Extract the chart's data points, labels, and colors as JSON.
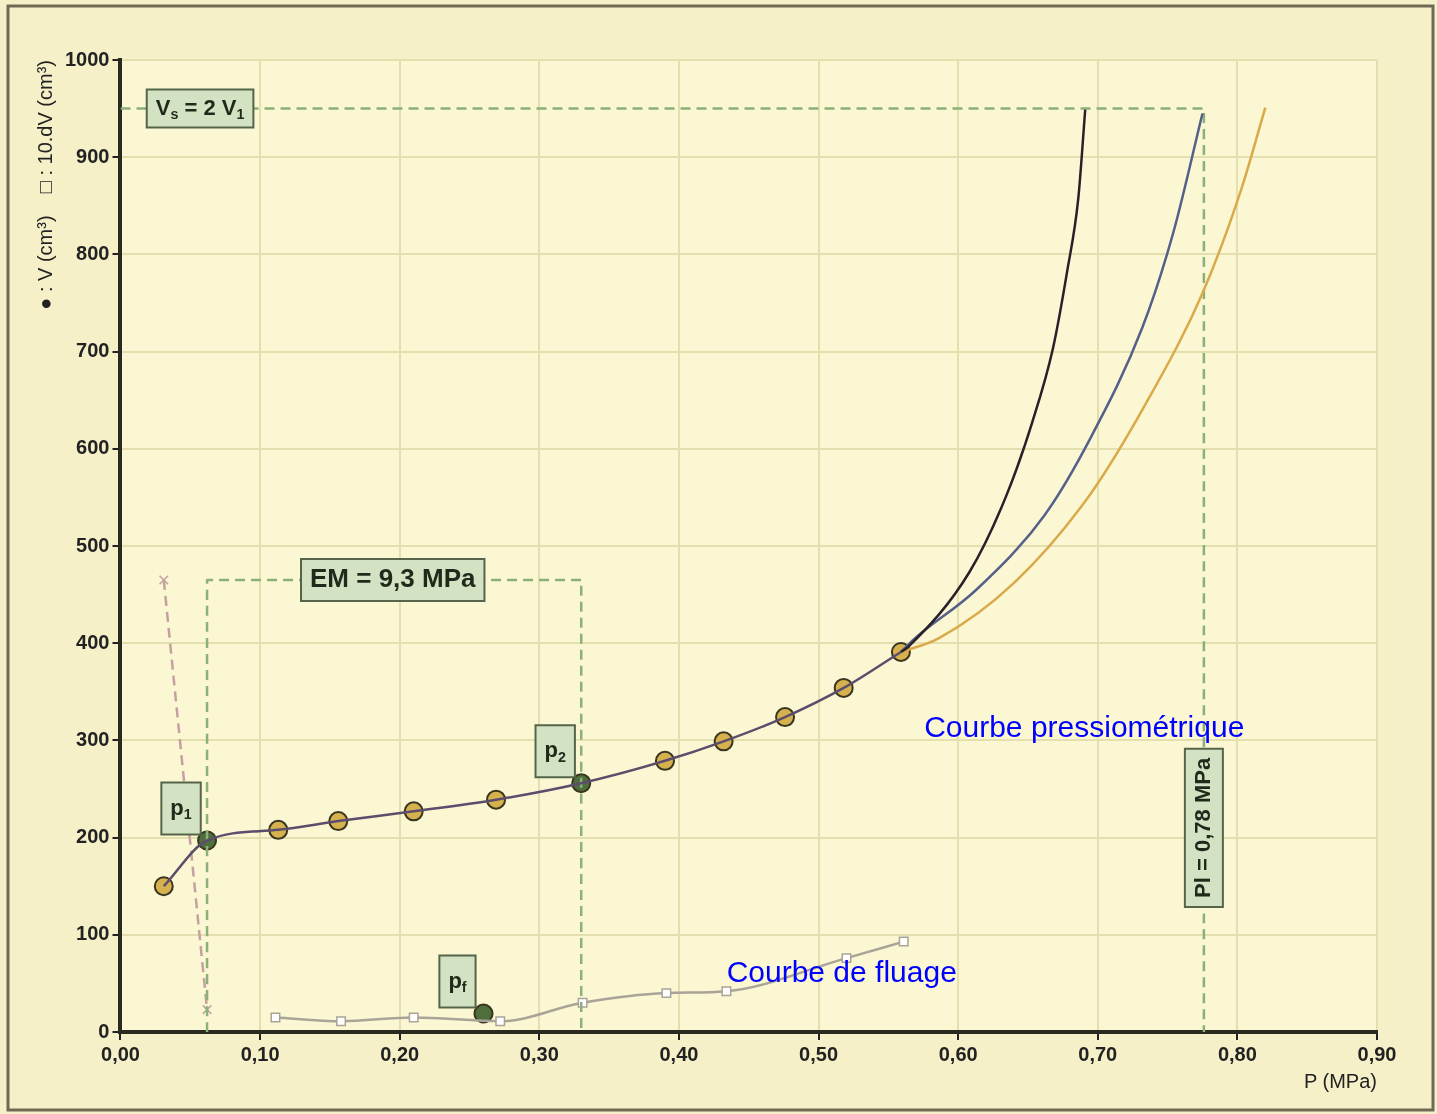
{
  "chart_data": {
    "type": "line",
    "xlabel": "P (MPa)",
    "ylabel": "● : V (cm³)    □ : 10.dV (cm³)",
    "xlim": [
      0,
      0.9
    ],
    "xticks": [
      {
        "value": 0,
        "label": "0,00"
      },
      {
        "value": 0.1,
        "label": "0,10"
      },
      {
        "value": 0.2,
        "label": "0,20"
      },
      {
        "value": 0.3,
        "label": "0,30"
      },
      {
        "value": 0.4,
        "label": "0,40"
      },
      {
        "value": 0.5,
        "label": "0,50"
      },
      {
        "value": 0.6,
        "label": "0,60"
      },
      {
        "value": 0.7,
        "label": "0,70"
      },
      {
        "value": 0.8,
        "label": "0,80"
      },
      {
        "value": 0.9,
        "label": "0,90"
      }
    ],
    "ylim": [
      0,
      1000
    ],
    "yticks": [
      0,
      100,
      200,
      300,
      400,
      500,
      600,
      700,
      800,
      900,
      1000
    ],
    "grid": true,
    "legend": false,
    "series": [
      {
        "type": "line",
        "color": "#5b4d6b",
        "marker": "none",
        "x": [
          0.031,
          0.062,
          0.113,
          0.156,
          0.21,
          0.269,
          0.33,
          0.39,
          0.432,
          0.476,
          0.518,
          0.559
        ],
        "values": [
          150,
          197,
          208,
          217,
          227,
          239,
          256,
          279,
          299,
          324,
          354,
          391
        ]
      },
      {
        "type": "line",
        "color": "#2b1f2a",
        "marker": "none",
        "x": [
          0.559,
          0.564,
          0.608,
          0.634,
          0.653,
          0.668,
          0.678,
          0.686,
          0.691
        ],
        "values": [
          391,
          396,
          473,
          550,
          627,
          704,
          782,
          857,
          949
        ]
      },
      {
        "type": "line",
        "color": "#55608a",
        "marker": "none",
        "x": [
          0.559,
          0.569,
          0.613,
          0.662,
          0.694,
          0.732,
          0.754,
          0.775
        ],
        "values": [
          391,
          405,
          455,
          532,
          609,
          725,
          822,
          945
        ]
      },
      {
        "type": "line",
        "color": "#d9a94a",
        "marker": "none",
        "x": [
          0.559,
          0.586,
          0.64,
          0.694,
          0.735,
          0.775,
          0.803,
          0.82
        ],
        "values": [
          391,
          405,
          462,
          552,
          648,
          760,
          868,
          951
        ]
      },
      {
        "type": "line",
        "color": "#8db07a",
        "marker": "none",
        "line_style": "dashed",
        "x": [
          0,
          0.776,
          0.776
        ],
        "values": [
          950,
          950,
          0
        ]
      },
      {
        "type": "line",
        "color": "#8db07a",
        "marker": "none",
        "line_style": "dashed",
        "x": [
          0.062,
          0.062,
          0.33,
          0.33
        ],
        "values": [
          0,
          465,
          465,
          0
        ]
      },
      {
        "type": "line",
        "color": "#c4a0a0",
        "marker": "cross",
        "line_style": "dashed",
        "x": [
          0.031,
          0.062
        ],
        "values": [
          465,
          23
        ]
      },
      {
        "type": "line",
        "color": "#a9a398",
        "marker": "square",
        "x": [
          0.111,
          0.158,
          0.21,
          0.272,
          0.331,
          0.391,
          0.434,
          0.52,
          0.561
        ],
        "values": [
          15,
          11,
          15,
          11,
          30,
          40,
          42,
          76,
          93
        ]
      },
      {
        "type": "scatter",
        "color": "#d6b24e",
        "marker": "circle",
        "x": [
          0.031,
          0.113,
          0.156,
          0.21,
          0.269,
          0.39,
          0.432,
          0.476,
          0.518,
          0.559
        ],
        "values": [
          150,
          208,
          217,
          227,
          239,
          279,
          299,
          324,
          354,
          391
        ]
      },
      {
        "type": "scatter",
        "color": "#4e6e3c",
        "marker": "circle",
        "x": [
          0.062,
          0.33,
          0.26
        ],
        "values": [
          197,
          256,
          19
        ]
      }
    ],
    "annotations": [
      {
        "text": "V$_{s}$ = 2 V$_{1}$",
        "x": 0.057,
        "y": 950
      },
      {
        "text": "EM = 9,3 MPa",
        "x": 0.195,
        "y": 465
      },
      {
        "text": "p$_{1}$",
        "x": 0.062,
        "y": 197
      },
      {
        "text": "p$_{2}$",
        "x": 0.33,
        "y": 256
      },
      {
        "text": "p$_{f}$",
        "x": 0.26,
        "y": 19
      },
      {
        "text": "Pl = 0,78 MPa",
        "x": 0.776,
        "y": 210
      },
      "Courbe pressiométrique",
      "Courbe de fluage"
    ]
  }
}
